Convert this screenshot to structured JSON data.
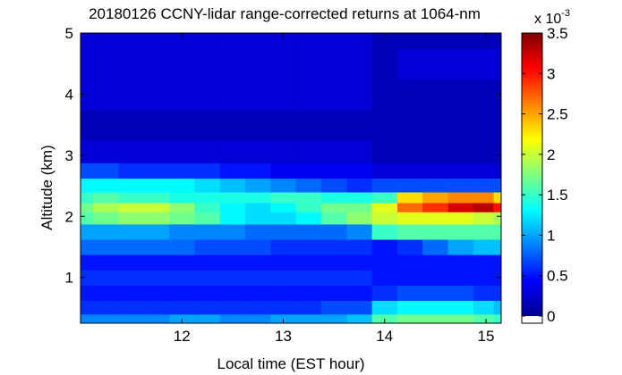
{
  "chart_data": {
    "type": "heatmap",
    "title": "20180126 CCNY-lidar range-corrected returns at 1064-nm",
    "xlabel": "Local time (EST hour)",
    "ylabel": "Altitude (km)",
    "xlim": [
      11.0,
      15.15
    ],
    "ylim": [
      0.25,
      5.0
    ],
    "x_ticks": [
      12,
      13,
      14,
      15
    ],
    "y_ticks": [
      1,
      2,
      3,
      4,
      5
    ],
    "colorbar": {
      "label_prefix": "x 10",
      "label_exponent": "-3",
      "range": [
        0,
        3.5
      ],
      "ticks": [
        0,
        0.5,
        1,
        1.5,
        2,
        2.5,
        3,
        3.5
      ],
      "colormap": "jet"
    },
    "x": [
      11.0,
      11.25,
      11.5,
      11.75,
      12.0,
      12.25,
      12.5,
      12.75,
      13.0,
      13.25,
      13.5,
      13.75,
      14.0,
      14.25,
      14.5,
      14.75,
      15.0,
      15.15
    ],
    "y": [
      0.3,
      0.5,
      0.75,
      1.0,
      1.25,
      1.5,
      1.75,
      2.0,
      2.15,
      2.3,
      2.5,
      2.75,
      3.0,
      3.5,
      4.0,
      4.5,
      5.0
    ],
    "z_values_x1e-3": [
      [
        0.9,
        0.9,
        0.9,
        0.9,
        1.0,
        1.0,
        0.9,
        0.9,
        1.0,
        1.0,
        1.0,
        1.1,
        1.6,
        1.7,
        1.7,
        1.7,
        1.6,
        1.5
      ],
      [
        0.6,
        0.6,
        0.6,
        0.6,
        0.6,
        0.6,
        0.6,
        0.6,
        0.6,
        0.6,
        0.7,
        0.7,
        1.2,
        1.3,
        1.3,
        1.3,
        1.2,
        1.1
      ],
      [
        0.5,
        0.5,
        0.5,
        0.5,
        0.5,
        0.5,
        0.5,
        0.5,
        0.5,
        0.5,
        0.5,
        0.5,
        0.6,
        0.7,
        0.7,
        0.7,
        0.6,
        0.6
      ],
      [
        0.6,
        0.6,
        0.6,
        0.6,
        0.6,
        0.6,
        0.6,
        0.6,
        0.6,
        0.6,
        0.6,
        0.6,
        0.5,
        0.5,
        0.5,
        0.5,
        0.5,
        0.5
      ],
      [
        0.5,
        0.5,
        0.5,
        0.5,
        0.5,
        0.5,
        0.5,
        0.5,
        0.5,
        0.5,
        0.5,
        0.5,
        0.5,
        0.5,
        0.5,
        0.5,
        0.5,
        0.5
      ],
      [
        0.8,
        0.8,
        0.8,
        0.8,
        0.8,
        0.7,
        0.7,
        0.7,
        0.6,
        0.6,
        0.6,
        0.6,
        0.5,
        0.6,
        0.8,
        1.0,
        1.1,
        1.1
      ],
      [
        1.0,
        1.0,
        1.0,
        1.0,
        0.9,
        0.9,
        0.9,
        0.8,
        0.8,
        0.8,
        0.8,
        0.9,
        1.5,
        1.6,
        1.6,
        1.6,
        1.6,
        1.6
      ],
      [
        1.6,
        1.7,
        1.8,
        1.8,
        1.7,
        1.6,
        1.3,
        1.2,
        1.2,
        1.3,
        1.6,
        1.8,
        2.0,
        2.1,
        2.1,
        2.1,
        2.0,
        1.9
      ],
      [
        1.7,
        1.9,
        2.0,
        2.0,
        1.8,
        1.5,
        1.3,
        1.2,
        1.3,
        1.5,
        1.7,
        1.7,
        2.1,
        2.7,
        2.9,
        3.2,
        3.3,
        3.0
      ],
      [
        1.5,
        1.6,
        1.5,
        1.5,
        1.4,
        1.4,
        1.4,
        1.4,
        1.5,
        1.5,
        1.4,
        1.4,
        1.5,
        2.3,
        2.5,
        2.6,
        2.6,
        2.3
      ],
      [
        1.3,
        1.3,
        1.3,
        1.3,
        1.3,
        1.2,
        1.1,
        1.0,
        0.9,
        0.8,
        0.7,
        0.6,
        0.7,
        0.7,
        0.7,
        0.7,
        0.7,
        0.7
      ],
      [
        0.7,
        0.7,
        0.6,
        0.6,
        0.6,
        0.6,
        0.5,
        0.5,
        0.4,
        0.4,
        0.4,
        0.4,
        0.3,
        0.3,
        0.3,
        0.3,
        0.3,
        0.3
      ],
      [
        0.3,
        0.3,
        0.3,
        0.3,
        0.3,
        0.3,
        0.3,
        0.3,
        0.3,
        0.3,
        0.3,
        0.3,
        0.2,
        0.2,
        0.2,
        0.2,
        0.2,
        0.2
      ],
      [
        0.2,
        0.2,
        0.2,
        0.2,
        0.2,
        0.2,
        0.2,
        0.2,
        0.2,
        0.2,
        0.2,
        0.2,
        0.2,
        0.2,
        0.2,
        0.2,
        0.2,
        0.2
      ],
      [
        0.3,
        0.3,
        0.3,
        0.3,
        0.3,
        0.3,
        0.3,
        0.3,
        0.3,
        0.3,
        0.3,
        0.3,
        0.2,
        0.2,
        0.2,
        0.2,
        0.2,
        0.2
      ],
      [
        0.3,
        0.3,
        0.3,
        0.3,
        0.3,
        0.3,
        0.3,
        0.3,
        0.3,
        0.3,
        0.3,
        0.3,
        0.2,
        0.3,
        0.3,
        0.3,
        0.3,
        0.3
      ],
      [
        0.3,
        0.3,
        0.3,
        0.3,
        0.3,
        0.3,
        0.3,
        0.3,
        0.3,
        0.3,
        0.3,
        0.3,
        0.2,
        0.2,
        0.2,
        0.2,
        0.2,
        0.2
      ]
    ]
  }
}
